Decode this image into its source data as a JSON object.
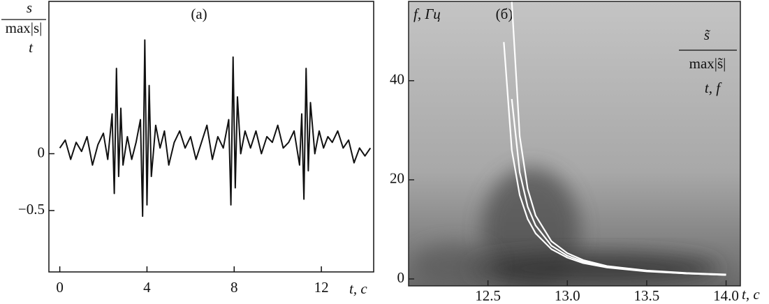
{
  "chart_data": [
    {
      "type": "line",
      "panel_label": "(а)",
      "y_label_numerator": "s",
      "y_label_denominator": "max|s|",
      "y_label_argument": "t",
      "x_label": "t, c",
      "x": [
        0,
        0.25,
        0.5,
        0.75,
        1,
        1.25,
        1.5,
        1.75,
        2,
        2.2,
        2.4,
        2.5,
        2.6,
        2.7,
        2.8,
        2.9,
        3.1,
        3.3,
        3.5,
        3.7,
        3.8,
        3.9,
        4.0,
        4.1,
        4.2,
        4.4,
        4.6,
        4.8,
        5.0,
        5.25,
        5.5,
        5.75,
        6,
        6.25,
        6.5,
        6.75,
        7,
        7.25,
        7.5,
        7.75,
        7.85,
        7.95,
        8.05,
        8.15,
        8.3,
        8.5,
        8.75,
        9,
        9.25,
        9.5,
        9.75,
        10,
        10.25,
        10.5,
        10.75,
        11,
        11.1,
        11.2,
        11.3,
        11.4,
        11.5,
        11.7,
        11.9,
        12.1,
        12.3,
        12.5,
        12.75,
        13,
        13.25,
        13.5,
        13.75,
        14,
        14.25
      ],
      "values": [
        0.05,
        0.12,
        -0.05,
        0.1,
        0.02,
        0.15,
        -0.1,
        0.08,
        0.18,
        -0.05,
        0.35,
        -0.35,
        0.75,
        -0.2,
        0.4,
        -0.1,
        0.15,
        -0.05,
        0.1,
        0.3,
        -0.55,
        1.0,
        -0.45,
        0.6,
        -0.2,
        0.25,
        0.05,
        0.2,
        -0.1,
        0.1,
        0.2,
        0.05,
        0.15,
        -0.05,
        0.1,
        0.25,
        -0.05,
        0.15,
        0.05,
        0.3,
        -0.45,
        0.85,
        -0.3,
        0.5,
        0.0,
        0.2,
        0.05,
        0.2,
        0.0,
        0.15,
        0.1,
        0.25,
        0.05,
        0.1,
        0.2,
        -0.1,
        0.35,
        -0.4,
        0.75,
        -0.15,
        0.45,
        0.0,
        0.2,
        0.05,
        0.15,
        0.1,
        0.2,
        0.05,
        0.12,
        -0.08,
        0.05,
        -0.02,
        0.05
      ],
      "color": "#111111",
      "xlim": [
        -0.5,
        14.4
      ],
      "ylim": [
        -1.04,
        1.34
      ],
      "xticks": [
        0,
        4,
        8,
        12
      ],
      "yticks": [
        {
          "value": -0.5,
          "label": "−0.5"
        },
        0
      ]
    },
    {
      "type": "line",
      "panel_label": "(б)",
      "y_label": "f, Гц",
      "x_label": "t, c",
      "annotation_numerator": "s̃",
      "annotation_denominator": "max|s̃|",
      "annotation_arguments": "t, f",
      "x": [
        12.6,
        12.65,
        12.7,
        12.75,
        12.8,
        12.9,
        13.0,
        13.1,
        13.25,
        13.5,
        13.75,
        14.0
      ],
      "series": [
        {
          "color": "#ffffff",
          "values": [
            47.8,
            26.0,
            16.9,
            12.1,
            9.2,
            6.0,
            4.3,
            3.2,
            2.3,
            1.51,
            1.1,
            0.8
          ]
        },
        {
          "color": "#ffffff",
          "values": [
            null,
            36.3,
            21.5,
            14.6,
            10.8,
            6.7,
            4.7,
            3.5,
            2.5,
            1.6,
            1.1,
            0.8
          ]
        },
        {
          "color": "#ffffff",
          "values": [
            null,
            55.9,
            28.8,
            18.2,
            12.8,
            7.6,
            5.2,
            3.8,
            2.6,
            1.7,
            1.2,
            0.9
          ]
        }
      ],
      "xlim": [
        12.0,
        14.09
      ],
      "ylim": [
        -1.4,
        56
      ],
      "xticks": [
        12.5,
        {
          "value": 13,
          "label": "13.0"
        },
        13.5,
        {
          "value": 14,
          "label": "14.0"
        }
      ],
      "yticks": [
        0,
        20,
        40
      ]
    }
  ]
}
